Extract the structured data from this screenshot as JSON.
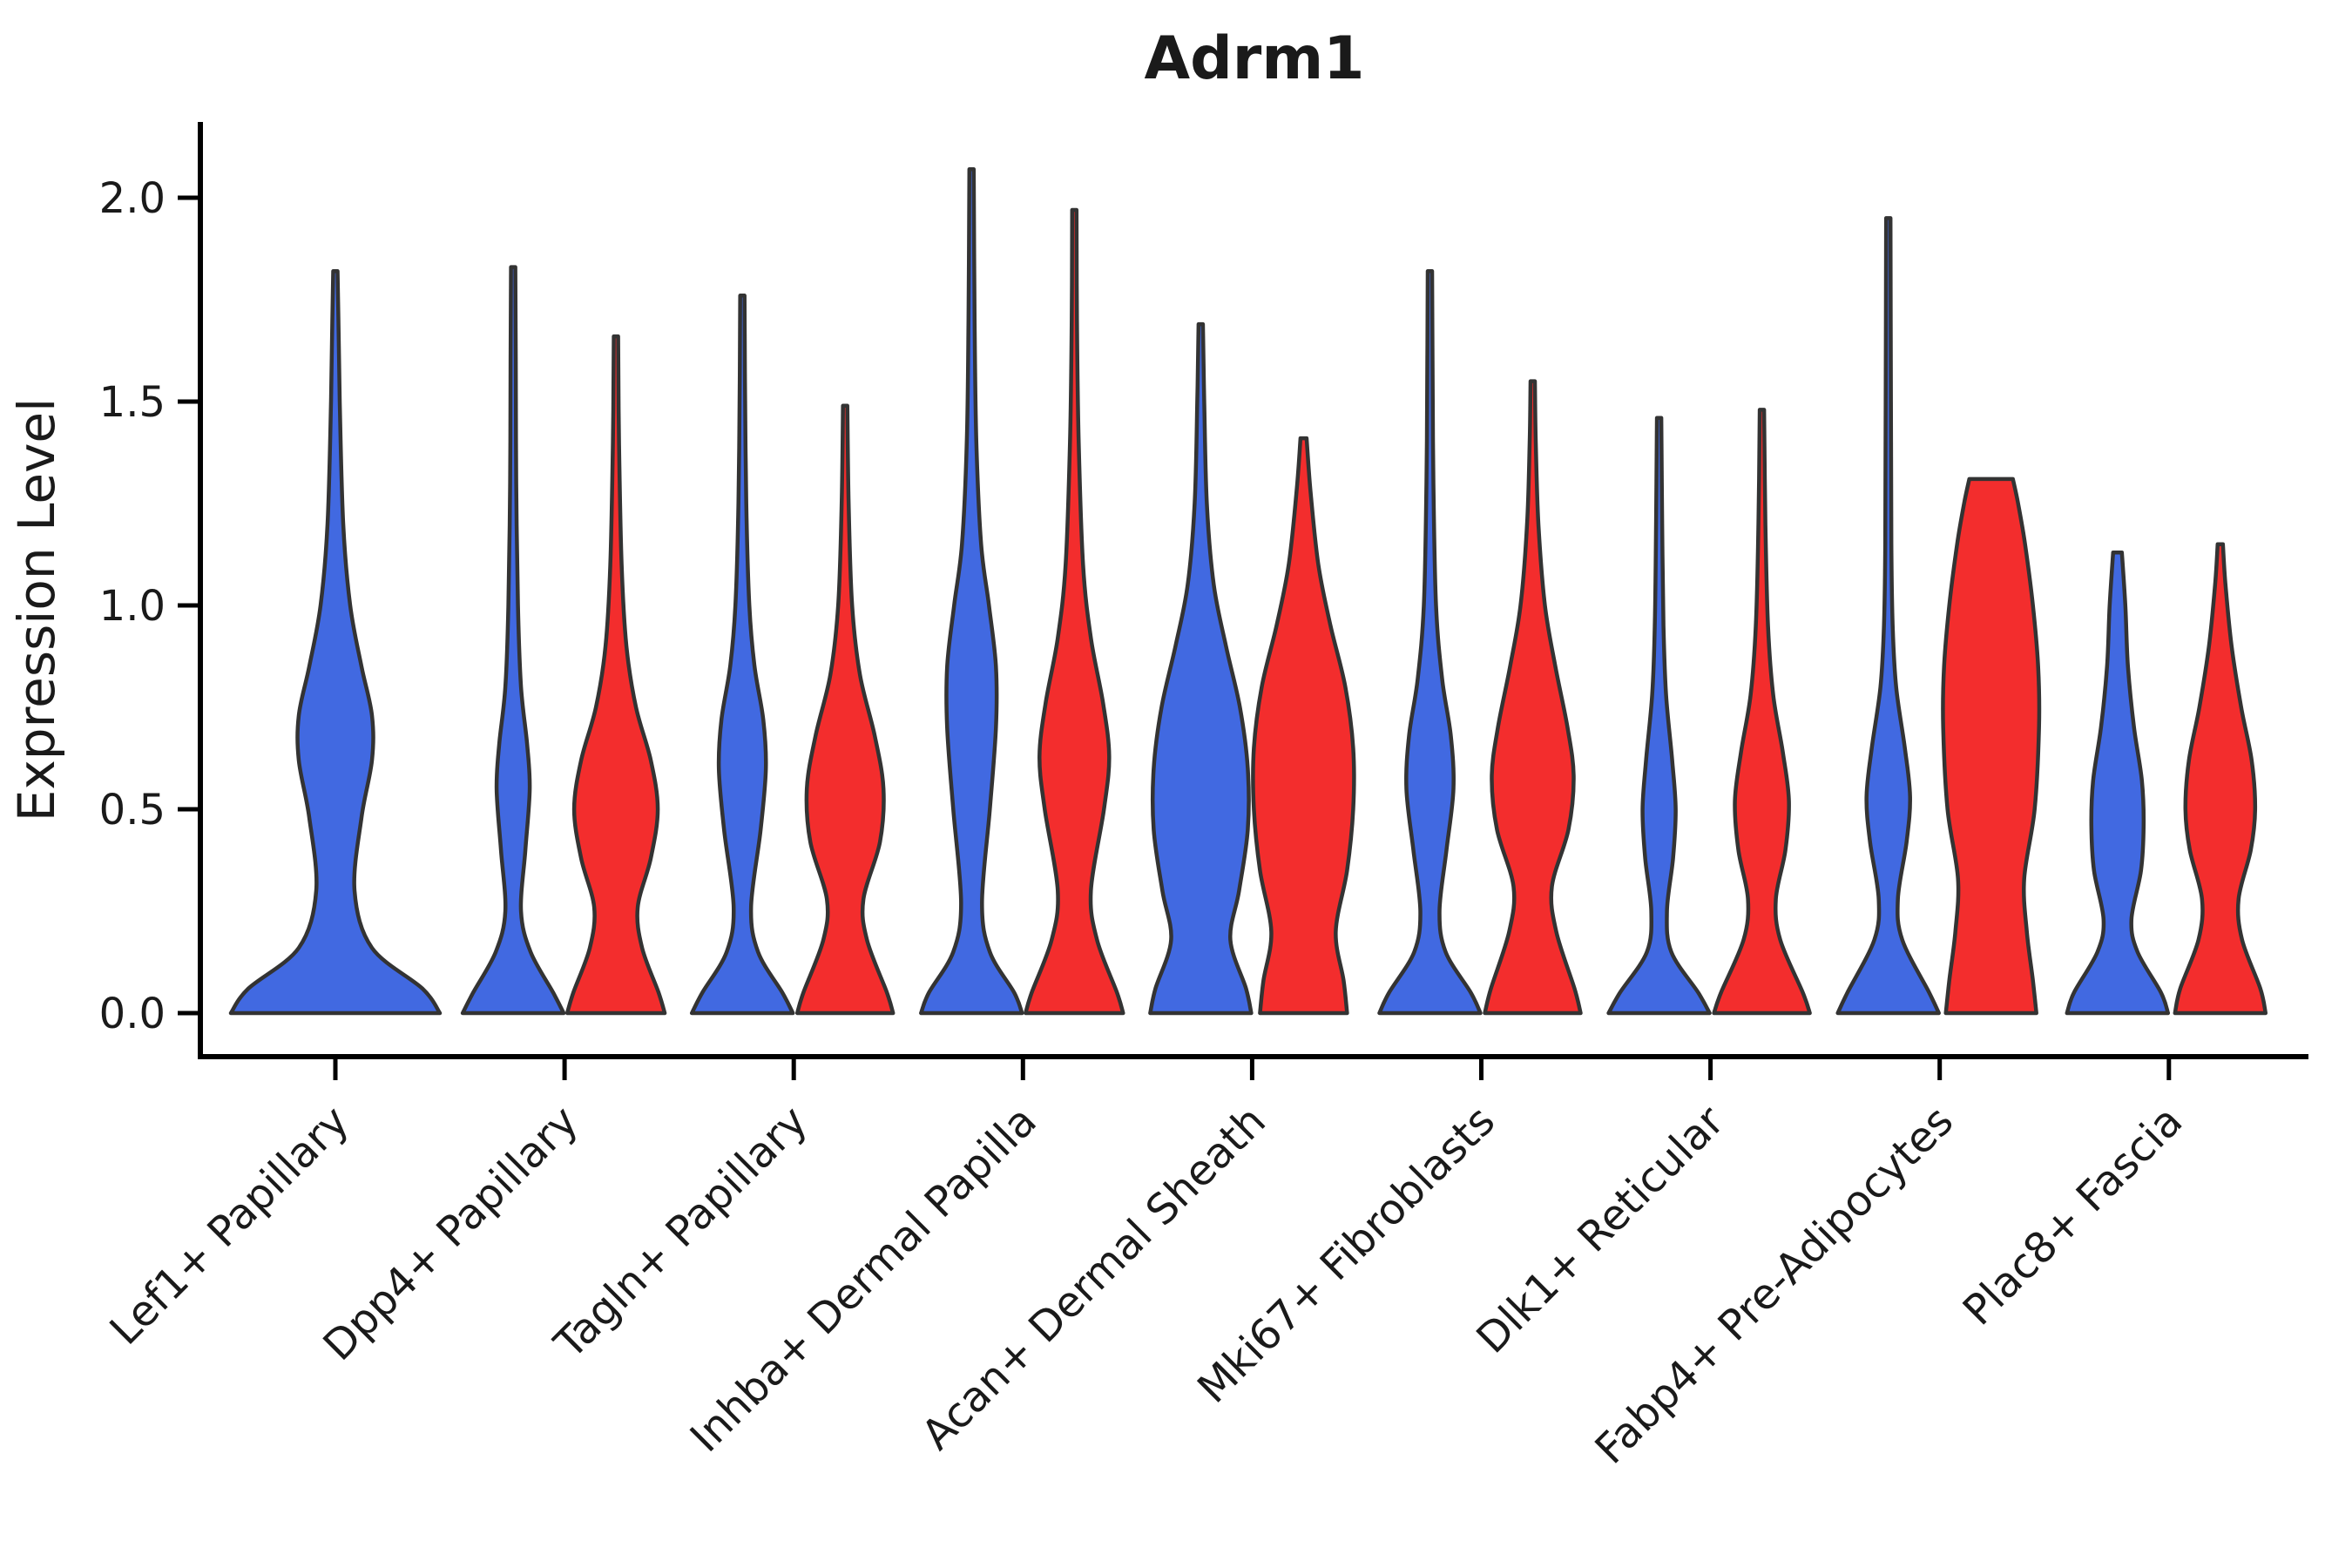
{
  "chart_data": {
    "type": "violin",
    "title": "Adrm1",
    "xlabel": "",
    "ylabel": "Expression Level",
    "ylim": [
      0,
      2.15
    ],
    "grid": false,
    "legend": "none",
    "yticks": [
      {
        "value": 0.0,
        "label": "0.0"
      },
      {
        "value": 0.5,
        "label": "0.5"
      },
      {
        "value": 1.0,
        "label": "1.0"
      },
      {
        "value": 1.5,
        "label": "1.5"
      },
      {
        "value": 2.0,
        "label": "2.0"
      }
    ],
    "categories": [
      "Lef1+ Papillary",
      "Dpp4+ Papillary",
      "Tagln+ Papillary",
      "Inhba+ Dermal Papilla",
      "Acan+ Dermal Sheath",
      "Mki67+ Fibroblasts",
      "Dlk1+ Reticular",
      "Fabp4+ Pre-Adipocytes",
      "Plac8+ Fascia"
    ],
    "series": [
      {
        "name": "blue",
        "color": "#4169E1",
        "max_expression": [
          1.82,
          1.83,
          1.76,
          2.07,
          1.69,
          1.82,
          1.46,
          1.95,
          1.13
        ]
      },
      {
        "name": "red",
        "color": "#F32D2D",
        "max_expression": [
          null,
          1.66,
          1.49,
          1.97,
          1.41,
          1.55,
          1.48,
          1.31,
          1.15
        ]
      }
    ],
    "violins": [
      {
        "category": 0,
        "series": "blue",
        "dodge": "full",
        "profile": [
          [
            0,
            120
          ],
          [
            0.06,
            100
          ],
          [
            0.16,
            42
          ],
          [
            0.3,
            22
          ],
          [
            0.48,
            30
          ],
          [
            0.62,
            42
          ],
          [
            0.73,
            42
          ],
          [
            0.85,
            30
          ],
          [
            1.0,
            17
          ],
          [
            1.2,
            9
          ],
          [
            1.5,
            5
          ],
          [
            1.7,
            3.5
          ],
          [
            1.82,
            2.5
          ]
        ]
      },
      {
        "category": 1,
        "series": "blue",
        "dodge": "left",
        "profile": [
          [
            0,
            58
          ],
          [
            0.05,
            46
          ],
          [
            0.15,
            20
          ],
          [
            0.25,
            9
          ],
          [
            0.4,
            14
          ],
          [
            0.55,
            19
          ],
          [
            0.66,
            16
          ],
          [
            0.8,
            9
          ],
          [
            1.0,
            5.5
          ],
          [
            1.3,
            3.5
          ],
          [
            1.6,
            3
          ],
          [
            1.83,
            2.5
          ]
        ]
      },
      {
        "category": 1,
        "series": "red",
        "dodge": "right",
        "profile": [
          [
            0,
            56
          ],
          [
            0.05,
            49
          ],
          [
            0.16,
            30
          ],
          [
            0.26,
            25
          ],
          [
            0.38,
            40
          ],
          [
            0.5,
            48
          ],
          [
            0.62,
            40
          ],
          [
            0.75,
            23
          ],
          [
            0.9,
            12
          ],
          [
            1.1,
            6.5
          ],
          [
            1.4,
            3.5
          ],
          [
            1.66,
            2.5
          ]
        ]
      },
      {
        "category": 2,
        "series": "blue",
        "dodge": "left",
        "profile": [
          [
            0,
            58
          ],
          [
            0.05,
            46
          ],
          [
            0.15,
            18
          ],
          [
            0.26,
            10
          ],
          [
            0.45,
            21
          ],
          [
            0.6,
            27
          ],
          [
            0.72,
            24
          ],
          [
            0.85,
            14
          ],
          [
            1.0,
            8
          ],
          [
            1.25,
            4.5
          ],
          [
            1.55,
            3
          ],
          [
            1.76,
            2.5
          ]
        ]
      },
      {
        "category": 2,
        "series": "red",
        "dodge": "right",
        "profile": [
          [
            0,
            55
          ],
          [
            0.05,
            48
          ],
          [
            0.18,
            25
          ],
          [
            0.28,
            21
          ],
          [
            0.42,
            40
          ],
          [
            0.55,
            44
          ],
          [
            0.68,
            34
          ],
          [
            0.83,
            17
          ],
          [
            1.0,
            8
          ],
          [
            1.25,
            4
          ],
          [
            1.49,
            2.5
          ]
        ]
      },
      {
        "category": 3,
        "series": "blue",
        "dodge": "left",
        "profile": [
          [
            0,
            58
          ],
          [
            0.05,
            49
          ],
          [
            0.15,
            21
          ],
          [
            0.27,
            12
          ],
          [
            0.5,
            21
          ],
          [
            0.7,
            28
          ],
          [
            0.85,
            28
          ],
          [
            1.0,
            20
          ],
          [
            1.15,
            11
          ],
          [
            1.4,
            5.5
          ],
          [
            1.7,
            3.5
          ],
          [
            2.07,
            2.5
          ]
        ]
      },
      {
        "category": 3,
        "series": "red",
        "dodge": "right",
        "profile": [
          [
            0,
            56
          ],
          [
            0.05,
            49
          ],
          [
            0.18,
            26
          ],
          [
            0.3,
            19
          ],
          [
            0.5,
            34
          ],
          [
            0.63,
            40
          ],
          [
            0.76,
            33
          ],
          [
            0.92,
            19
          ],
          [
            1.1,
            10
          ],
          [
            1.4,
            5
          ],
          [
            1.7,
            3
          ],
          [
            1.97,
            2.5
          ]
        ]
      },
      {
        "category": 4,
        "series": "blue",
        "dodge": "left",
        "profile": [
          [
            0,
            58
          ],
          [
            0.06,
            52
          ],
          [
            0.18,
            34
          ],
          [
            0.3,
            44
          ],
          [
            0.45,
            54
          ],
          [
            0.6,
            54
          ],
          [
            0.75,
            45
          ],
          [
            0.9,
            29
          ],
          [
            1.05,
            15
          ],
          [
            1.25,
            7
          ],
          [
            1.5,
            4
          ],
          [
            1.69,
            2.5
          ]
        ]
      },
      {
        "category": 4,
        "series": "red",
        "dodge": "right",
        "profile": [
          [
            0,
            50
          ],
          [
            0.08,
            46
          ],
          [
            0.2,
            37
          ],
          [
            0.35,
            50
          ],
          [
            0.5,
            57
          ],
          [
            0.65,
            57
          ],
          [
            0.8,
            48
          ],
          [
            0.95,
            31
          ],
          [
            1.1,
            17
          ],
          [
            1.28,
            8
          ],
          [
            1.41,
            3.5
          ]
        ]
      },
      {
        "category": 5,
        "series": "blue",
        "dodge": "left",
        "profile": [
          [
            0,
            58
          ],
          [
            0.05,
            47
          ],
          [
            0.15,
            18
          ],
          [
            0.25,
            11
          ],
          [
            0.4,
            19
          ],
          [
            0.55,
            27
          ],
          [
            0.68,
            24
          ],
          [
            0.82,
            14
          ],
          [
            1.0,
            7
          ],
          [
            1.3,
            4
          ],
          [
            1.6,
            3
          ],
          [
            1.82,
            2.5
          ]
        ]
      },
      {
        "category": 5,
        "series": "red",
        "dodge": "right",
        "profile": [
          [
            0,
            55
          ],
          [
            0.06,
            48
          ],
          [
            0.2,
            27
          ],
          [
            0.31,
            22
          ],
          [
            0.45,
            41
          ],
          [
            0.58,
            47
          ],
          [
            0.7,
            40
          ],
          [
            0.85,
            26
          ],
          [
            1.0,
            14
          ],
          [
            1.2,
            6.5
          ],
          [
            1.4,
            3.5
          ],
          [
            1.55,
            2.5
          ]
        ]
      },
      {
        "category": 6,
        "series": "blue",
        "dodge": "left",
        "profile": [
          [
            0,
            58
          ],
          [
            0.05,
            45
          ],
          [
            0.15,
            14
          ],
          [
            0.25,
            9
          ],
          [
            0.38,
            16
          ],
          [
            0.5,
            19
          ],
          [
            0.62,
            15
          ],
          [
            0.78,
            8
          ],
          [
            0.95,
            5
          ],
          [
            1.2,
            3.5
          ],
          [
            1.46,
            2.5
          ]
        ]
      },
      {
        "category": 6,
        "series": "red",
        "dodge": "right",
        "profile": [
          [
            0,
            55
          ],
          [
            0.05,
            47
          ],
          [
            0.18,
            21
          ],
          [
            0.28,
            16
          ],
          [
            0.4,
            27
          ],
          [
            0.52,
            31
          ],
          [
            0.64,
            24
          ],
          [
            0.78,
            13
          ],
          [
            0.95,
            7
          ],
          [
            1.2,
            4
          ],
          [
            1.48,
            2.5
          ]
        ]
      },
      {
        "category": 7,
        "series": "blue",
        "dodge": "left",
        "profile": [
          [
            0,
            58
          ],
          [
            0.05,
            47
          ],
          [
            0.18,
            16
          ],
          [
            0.28,
            11
          ],
          [
            0.42,
            21
          ],
          [
            0.53,
            25
          ],
          [
            0.65,
            19
          ],
          [
            0.8,
            9
          ],
          [
            0.95,
            5
          ],
          [
            1.15,
            3.5
          ],
          [
            1.5,
            3
          ],
          [
            1.95,
            2.5
          ]
        ]
      },
      {
        "category": 7,
        "series": "red",
        "dodge": "right",
        "flat_top": true,
        "profile": [
          [
            0,
            52
          ],
          [
            0.08,
            48
          ],
          [
            0.2,
            41
          ],
          [
            0.33,
            38
          ],
          [
            0.5,
            50
          ],
          [
            0.7,
            55
          ],
          [
            0.85,
            54
          ],
          [
            1.0,
            48
          ],
          [
            1.15,
            39
          ],
          [
            1.25,
            31
          ],
          [
            1.31,
            25
          ]
        ]
      },
      {
        "category": 8,
        "series": "blue",
        "dodge": "left",
        "profile": [
          [
            0,
            58
          ],
          [
            0.05,
            50
          ],
          [
            0.15,
            23
          ],
          [
            0.23,
            16
          ],
          [
            0.35,
            27
          ],
          [
            0.46,
            30
          ],
          [
            0.57,
            28
          ],
          [
            0.7,
            19
          ],
          [
            0.85,
            12
          ],
          [
            1.0,
            9
          ],
          [
            1.13,
            5
          ]
        ]
      },
      {
        "category": 8,
        "series": "red",
        "dodge": "right",
        "profile": [
          [
            0,
            52
          ],
          [
            0.06,
            46
          ],
          [
            0.18,
            25
          ],
          [
            0.28,
            21
          ],
          [
            0.4,
            35
          ],
          [
            0.5,
            40
          ],
          [
            0.62,
            36
          ],
          [
            0.75,
            24
          ],
          [
            0.9,
            13
          ],
          [
            1.05,
            6
          ],
          [
            1.15,
            3
          ]
        ]
      }
    ]
  },
  "colors": {
    "blue_fill": "#4169E1",
    "red_fill": "#F32D2D",
    "outline": "#333333",
    "axis": "#000000",
    "text": "#1a1a1a",
    "background": "#ffffff"
  }
}
